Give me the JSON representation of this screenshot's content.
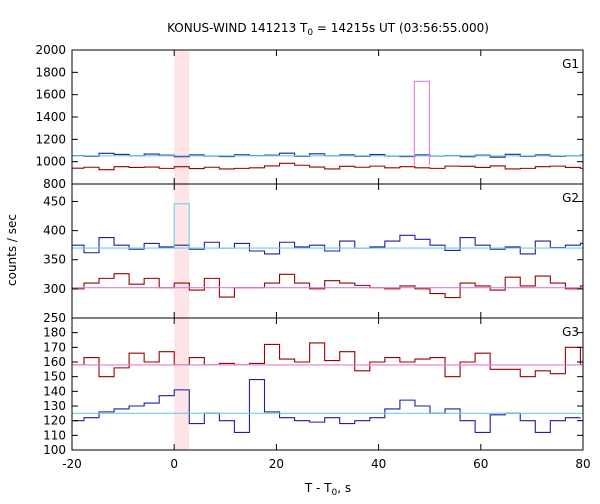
{
  "chart_data": {
    "type": "line",
    "title_main": "KONUS-WIND 141213 T",
    "title_sub": "0",
    "title_rest": " = 14215s UT (03:56:55.000)",
    "xlabel_main": "T - T",
    "xlabel_sub": "0",
    "xlabel_rest": ", s",
    "ylabel": "counts / sec",
    "xlim": [
      -20,
      80
    ],
    "x_ticks": [
      -20,
      0,
      20,
      40,
      60,
      80
    ],
    "x_tick_labels": [
      "-20",
      "0",
      "20",
      "40",
      "60",
      "80"
    ],
    "highlight_interval": [
      0,
      2.944
    ],
    "bin_width": 2.944,
    "grid": false,
    "colors": {
      "dark_red": "#990000",
      "blue": "#1f1fa0",
      "light_blue": "#6fcde8",
      "pink": "#e87ad6",
      "highlight": "#fde4e6"
    },
    "panels": [
      {
        "label": "G1",
        "ylim": [
          800,
          2000
        ],
        "y_ticks": [
          800,
          1000,
          1200,
          1400,
          1600,
          1800,
          2000
        ],
        "y_tick_labels": [
          "800",
          "1000",
          "1200",
          "1400",
          "1600",
          "1800",
          "2000"
        ],
        "series": [
          {
            "color": "blue",
            "style": "step",
            "x_start": -20.6,
            "values": [
              1055,
              1048,
              1075,
              1065,
              1052,
              1068,
              1058,
              1045,
              1060,
              1050,
              1046,
              1062,
              1055,
              1058,
              1076,
              1048,
              1070,
              1052,
              1060,
              1048,
              1064,
              1050,
              1046,
              1060,
              1050,
              1055,
              1045,
              1058,
              1040,
              1066,
              1048,
              1060,
              1048,
              1052,
              1058,
              1050
            ]
          },
          {
            "color": "dark_red",
            "style": "step",
            "x_start": -20.6,
            "values": [
              942,
              950,
              928,
              955,
              948,
              952,
              940,
              955,
              938,
              950,
              935,
              940,
              945,
              962,
              985,
              968,
              952,
              935,
              958,
              950,
              960,
              945,
              955,
              945,
              940,
              960,
              958,
              948,
              962,
              935,
              940,
              955,
              960,
              948,
              940,
              960
            ]
          },
          {
            "color": "light_blue",
            "style": "line",
            "x": [
              -20,
              80
            ],
            "y": [
              1052,
              1052
            ]
          },
          {
            "color": "pink",
            "style": "step",
            "x_start": 47.0,
            "values": [
              1720
            ]
          }
        ]
      },
      {
        "label": "G2",
        "ylim": [
          250,
          480
        ],
        "y_ticks": [
          250,
          300,
          350,
          400,
          450
        ],
        "y_tick_labels": [
          "250",
          "300",
          "350",
          "400",
          "450"
        ],
        "series": [
          {
            "color": "blue",
            "style": "step",
            "x_start": -20.6,
            "values": [
              375,
              362,
              388,
              375,
              368,
              378,
              372,
              375,
              368,
              380,
              370,
              378,
              365,
              360,
              380,
              372,
              375,
              365,
              382,
              370,
              372,
              382,
              392,
              385,
              375,
              366,
              388,
              375,
              368,
              372,
              360,
              382,
              371,
              375,
              378,
              385
            ]
          },
          {
            "color": "dark_red",
            "style": "step",
            "x_start": -20.6,
            "values": [
              300,
              310,
              318,
              326,
              308,
              318,
              302,
              310,
              298,
              318,
              286,
              302,
              302,
              310,
              325,
              310,
              300,
              314,
              310,
              306,
              302,
              300,
              305,
              300,
              292,
              285,
              310,
              305,
              298,
              320,
              305,
              322,
              310,
              300,
              305,
              295
            ]
          },
          {
            "color": "light_blue",
            "style": "line",
            "x": [
              -20,
              80
            ],
            "y": [
              370,
              370
            ]
          },
          {
            "color": "pink",
            "style": "line",
            "x": [
              -20,
              80
            ],
            "y": [
              302,
              302
            ]
          },
          {
            "color": "light_blue",
            "style": "step",
            "x_start": 0,
            "values": [
              446
            ]
          }
        ]
      },
      {
        "label": "G3",
        "ylim": [
          100,
          190
        ],
        "y_ticks": [
          100,
          110,
          120,
          130,
          140,
          150,
          160,
          170,
          180
        ],
        "y_tick_labels": [
          "100",
          "110",
          "120",
          "130",
          "140",
          "150",
          "160",
          "170",
          "180"
        ],
        "series": [
          {
            "color": "dark_red",
            "style": "step",
            "x_start": -20.6,
            "values": [
              158,
              163,
              150,
              156,
              166,
              160,
              167,
              158,
              163,
              158,
              159,
              158,
              159,
              172,
              162,
              160,
              173,
              161,
              167,
              154,
              160,
              163,
              160,
              162,
              163,
              150,
              160,
              166,
              155,
              155,
              150,
              154,
              152,
              170,
              158,
              160,
              176
            ]
          },
          {
            "color": "blue",
            "style": "step",
            "x_start": -20.6,
            "values": [
              120,
              122,
              126,
              128,
              130,
              132,
              137,
              141,
              118,
              125,
              120,
              112,
              148,
              126,
              122,
              120,
              119,
              122,
              118,
              120,
              122,
              128,
              134,
              130,
              125,
              128,
              120,
              112,
              124,
              125,
              120,
              112,
              120,
              122
            ]
          },
          {
            "color": "light_blue",
            "style": "line",
            "x": [
              -20,
              80
            ],
            "y": [
              125,
              125
            ]
          },
          {
            "color": "pink",
            "style": "line",
            "x": [
              -20,
              80
            ],
            "y": [
              158,
              158
            ]
          }
        ]
      }
    ]
  }
}
